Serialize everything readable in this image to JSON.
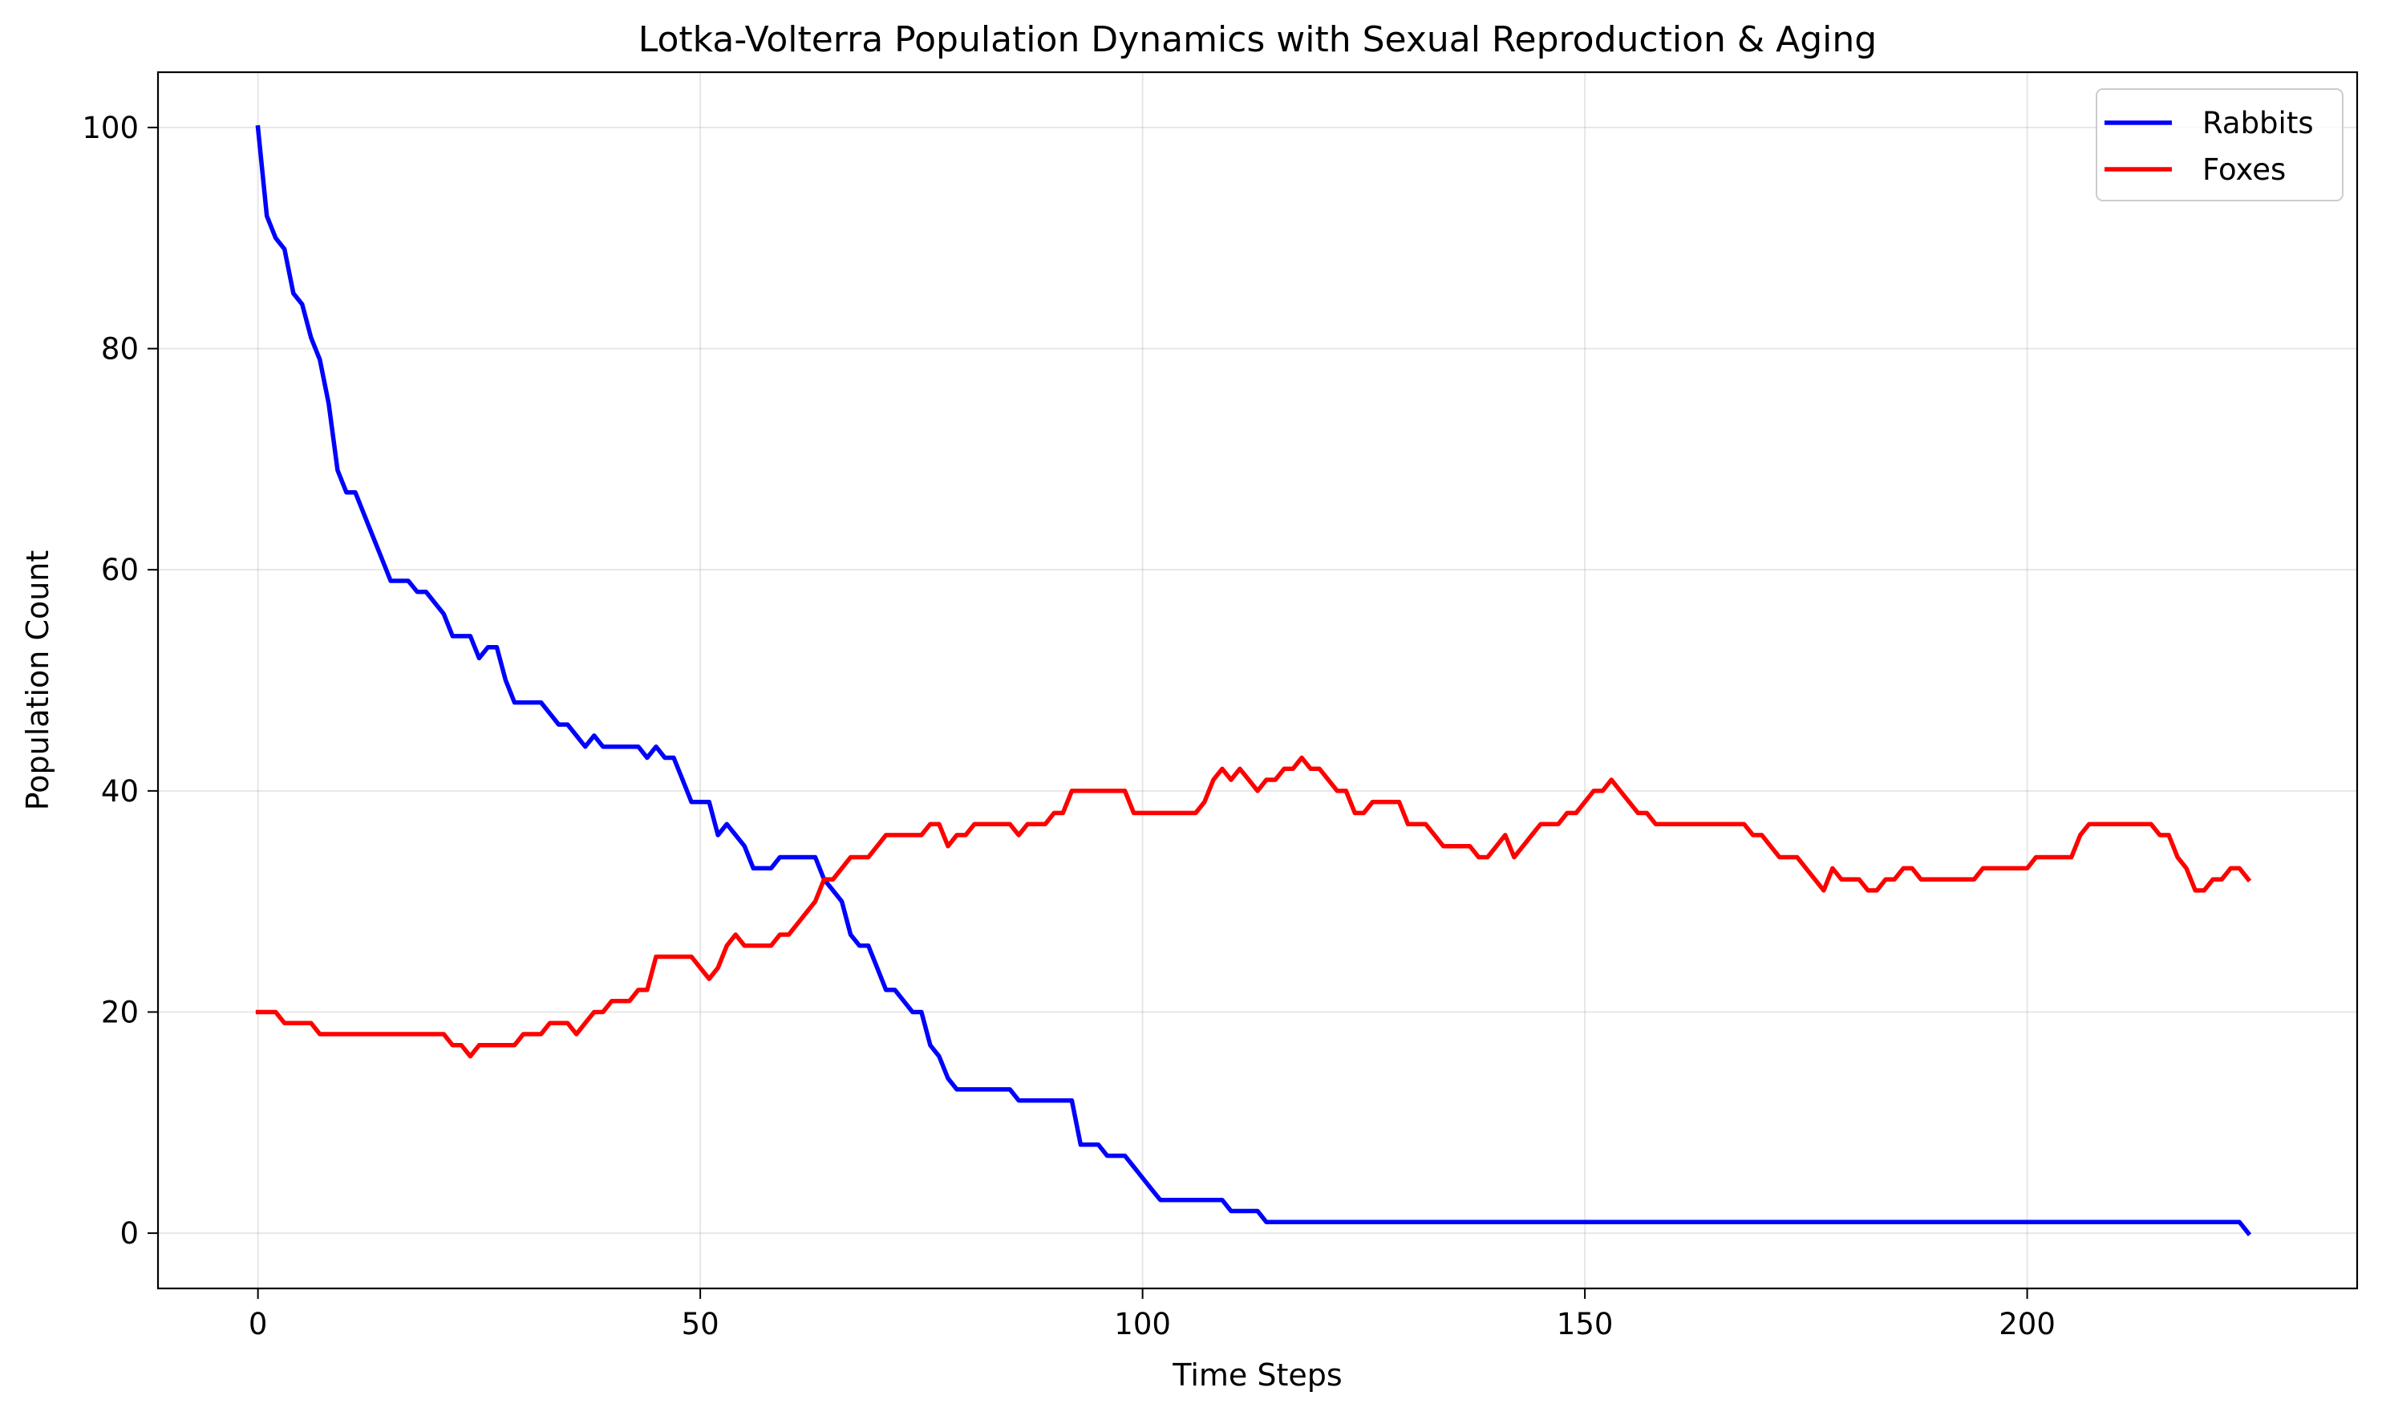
{
  "chart_data": {
    "type": "line",
    "title": "Lotka-Volterra Population Dynamics with Sexual Reproduction & Aging",
    "xlabel": "Time Steps",
    "ylabel": "Population Count",
    "xlim": [
      -11.3,
      237.3
    ],
    "ylim": [
      -5,
      105
    ],
    "xticks": [
      0,
      50,
      100,
      150,
      200
    ],
    "yticks": [
      0,
      20,
      40,
      60,
      80,
      100
    ],
    "grid": true,
    "legend_position": "top-right",
    "series": [
      {
        "name": "Rabbits",
        "color": "#0000ff",
        "points": [
          [
            0,
            100
          ],
          [
            1,
            92
          ],
          [
            2,
            90
          ],
          [
            3,
            89
          ],
          [
            4,
            85
          ],
          [
            5,
            84
          ],
          [
            6,
            81
          ],
          [
            7,
            79
          ],
          [
            8,
            75
          ],
          [
            9,
            69
          ],
          [
            10,
            67
          ],
          [
            11,
            67
          ],
          [
            12,
            65
          ],
          [
            13,
            63
          ],
          [
            14,
            61
          ],
          [
            15,
            59
          ],
          [
            16,
            59
          ],
          [
            17,
            59
          ],
          [
            18,
            58
          ],
          [
            19,
            58
          ],
          [
            20,
            57
          ],
          [
            21,
            56
          ],
          [
            22,
            54
          ],
          [
            23,
            54
          ],
          [
            24,
            54
          ],
          [
            25,
            52
          ],
          [
            26,
            53
          ],
          [
            27,
            53
          ],
          [
            28,
            50
          ],
          [
            29,
            48
          ],
          [
            30,
            48
          ],
          [
            31,
            48
          ],
          [
            32,
            48
          ],
          [
            33,
            47
          ],
          [
            34,
            46
          ],
          [
            35,
            46
          ],
          [
            36,
            45
          ],
          [
            37,
            44
          ],
          [
            38,
            45
          ],
          [
            39,
            44
          ],
          [
            40,
            44
          ],
          [
            41,
            44
          ],
          [
            42,
            44
          ],
          [
            43,
            44
          ],
          [
            44,
            43
          ],
          [
            45,
            44
          ],
          [
            46,
            43
          ],
          [
            47,
            43
          ],
          [
            48,
            41
          ],
          [
            49,
            39
          ],
          [
            50,
            39
          ],
          [
            51,
            39
          ],
          [
            52,
            36
          ],
          [
            53,
            37
          ],
          [
            54,
            36
          ],
          [
            55,
            35
          ],
          [
            56,
            33
          ],
          [
            57,
            33
          ],
          [
            58,
            33
          ],
          [
            59,
            34
          ],
          [
            60,
            34
          ],
          [
            61,
            34
          ],
          [
            62,
            34
          ],
          [
            63,
            34
          ],
          [
            64,
            32
          ],
          [
            65,
            31
          ],
          [
            66,
            30
          ],
          [
            67,
            27
          ],
          [
            68,
            26
          ],
          [
            69,
            26
          ],
          [
            70,
            24
          ],
          [
            71,
            22
          ],
          [
            72,
            22
          ],
          [
            73,
            21
          ],
          [
            74,
            20
          ],
          [
            75,
            20
          ],
          [
            76,
            17
          ],
          [
            77,
            16
          ],
          [
            78,
            14
          ],
          [
            79,
            13
          ],
          [
            80,
            13
          ],
          [
            85,
            13
          ],
          [
            86,
            12
          ],
          [
            92,
            12
          ],
          [
            93,
            8
          ],
          [
            95,
            8
          ],
          [
            96,
            7
          ],
          [
            98,
            7
          ],
          [
            99,
            6
          ],
          [
            100,
            5
          ],
          [
            101,
            4
          ],
          [
            102,
            3
          ],
          [
            109,
            3
          ],
          [
            110,
            2
          ],
          [
            113,
            2
          ],
          [
            114,
            1
          ],
          [
            224,
            1
          ],
          [
            225,
            0
          ]
        ]
      },
      {
        "name": "Foxes",
        "color": "#ff0000",
        "points": [
          [
            0,
            20
          ],
          [
            2,
            20
          ],
          [
            3,
            19
          ],
          [
            6,
            19
          ],
          [
            7,
            18
          ],
          [
            21,
            18
          ],
          [
            22,
            17
          ],
          [
            23,
            17
          ],
          [
            24,
            16
          ],
          [
            25,
            17
          ],
          [
            29,
            17
          ],
          [
            30,
            18
          ],
          [
            32,
            18
          ],
          [
            33,
            19
          ],
          [
            35,
            19
          ],
          [
            36,
            18
          ],
          [
            37,
            19
          ],
          [
            38,
            20
          ],
          [
            39,
            20
          ],
          [
            40,
            21
          ],
          [
            42,
            21
          ],
          [
            43,
            22
          ],
          [
            44,
            22
          ],
          [
            45,
            25
          ],
          [
            49,
            25
          ],
          [
            50,
            24
          ],
          [
            51,
            23
          ],
          [
            52,
            24
          ],
          [
            53,
            26
          ],
          [
            54,
            27
          ],
          [
            55,
            26
          ],
          [
            58,
            26
          ],
          [
            59,
            27
          ],
          [
            60,
            27
          ],
          [
            61,
            28
          ],
          [
            62,
            29
          ],
          [
            63,
            30
          ],
          [
            64,
            32
          ],
          [
            65,
            32
          ],
          [
            66,
            33
          ],
          [
            67,
            34
          ],
          [
            69,
            34
          ],
          [
            70,
            35
          ],
          [
            71,
            36
          ],
          [
            75,
            36
          ],
          [
            76,
            37
          ],
          [
            77,
            37
          ],
          [
            78,
            35
          ],
          [
            79,
            36
          ],
          [
            80,
            36
          ],
          [
            81,
            37
          ],
          [
            85,
            37
          ],
          [
            86,
            36
          ],
          [
            87,
            37
          ],
          [
            89,
            37
          ],
          [
            90,
            38
          ],
          [
            91,
            38
          ],
          [
            92,
            40
          ],
          [
            98,
            40
          ],
          [
            99,
            38
          ],
          [
            106,
            38
          ],
          [
            107,
            39
          ],
          [
            108,
            41
          ],
          [
            109,
            42
          ],
          [
            110,
            41
          ],
          [
            111,
            42
          ],
          [
            112,
            41
          ],
          [
            113,
            40
          ],
          [
            114,
            41
          ],
          [
            115,
            41
          ],
          [
            116,
            42
          ],
          [
            117,
            42
          ],
          [
            118,
            43
          ],
          [
            119,
            42
          ],
          [
            120,
            42
          ],
          [
            121,
            41
          ],
          [
            122,
            40
          ],
          [
            123,
            40
          ],
          [
            124,
            38
          ],
          [
            125,
            38
          ],
          [
            126,
            39
          ],
          [
            129,
            39
          ],
          [
            130,
            37
          ],
          [
            132,
            37
          ],
          [
            133,
            36
          ],
          [
            134,
            35
          ],
          [
            137,
            35
          ],
          [
            138,
            34
          ],
          [
            139,
            34
          ],
          [
            140,
            35
          ],
          [
            141,
            36
          ],
          [
            142,
            34
          ],
          [
            143,
            35
          ],
          [
            144,
            36
          ],
          [
            145,
            37
          ],
          [
            147,
            37
          ],
          [
            148,
            38
          ],
          [
            149,
            38
          ],
          [
            150,
            39
          ],
          [
            151,
            40
          ],
          [
            152,
            40
          ],
          [
            153,
            41
          ],
          [
            154,
            40
          ],
          [
            155,
            39
          ],
          [
            156,
            38
          ],
          [
            157,
            38
          ],
          [
            158,
            37
          ],
          [
            168,
            37
          ],
          [
            169,
            36
          ],
          [
            170,
            36
          ],
          [
            171,
            35
          ],
          [
            172,
            34
          ],
          [
            174,
            34
          ],
          [
            175,
            33
          ],
          [
            176,
            32
          ],
          [
            177,
            31
          ],
          [
            178,
            33
          ],
          [
            179,
            32
          ],
          [
            181,
            32
          ],
          [
            182,
            31
          ],
          [
            183,
            31
          ],
          [
            184,
            32
          ],
          [
            185,
            32
          ],
          [
            186,
            33
          ],
          [
            187,
            33
          ],
          [
            188,
            32
          ],
          [
            194,
            32
          ],
          [
            195,
            33
          ],
          [
            200,
            33
          ],
          [
            201,
            34
          ],
          [
            205,
            34
          ],
          [
            206,
            36
          ],
          [
            207,
            37
          ],
          [
            214,
            37
          ],
          [
            215,
            36
          ],
          [
            216,
            36
          ],
          [
            217,
            34
          ],
          [
            218,
            33
          ],
          [
            219,
            31
          ],
          [
            220,
            31
          ],
          [
            221,
            32
          ],
          [
            222,
            32
          ],
          [
            223,
            33
          ],
          [
            224,
            33
          ],
          [
            225,
            32
          ]
        ]
      }
    ]
  }
}
